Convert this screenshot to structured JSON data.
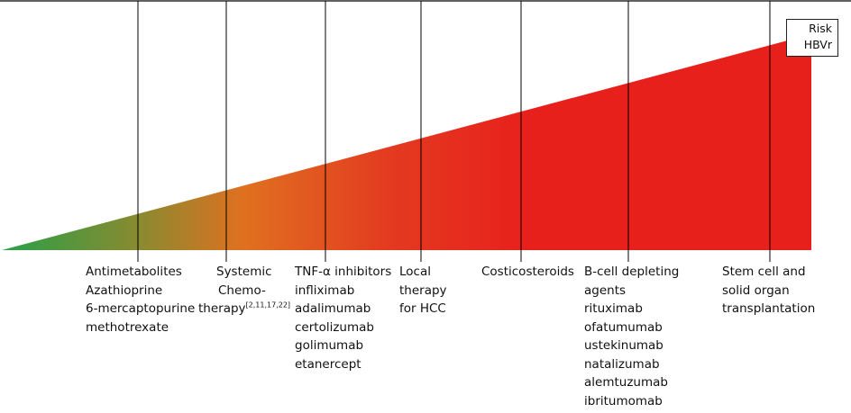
{
  "risk_label": {
    "line1": "Risk",
    "line2": "HBVr"
  },
  "colors": {
    "gradient_start": "#28a048",
    "gradient_mid1": "#8a8a30",
    "gradient_mid2": "#e07020",
    "gradient_mid3": "#e33a20",
    "gradient_end": "#e8201c",
    "line": "#000000"
  },
  "categories": [
    {
      "id": "antimetabolites",
      "lines": [
        "Antimetabolites",
        "Azathioprine",
        "6-mercaptopurine",
        "methotrexate"
      ]
    },
    {
      "id": "systemic-chemotherapy",
      "lines": [
        "Systemic",
        "Chemo-",
        "therapy"
      ],
      "ref": "[2,11,17,22]"
    },
    {
      "id": "tnf-inhibitors",
      "lines": [
        "TNF-α inhibitors",
        "infliximab",
        "adalimumab",
        "certolizumab",
        "golimumab",
        "etanercept"
      ]
    },
    {
      "id": "local-therapy-hcc",
      "lines": [
        "Local",
        "therapy",
        "for HCC"
      ]
    },
    {
      "id": "corticosteroids",
      "lines": [
        "Costicosteroids"
      ]
    },
    {
      "id": "b-cell-depleting",
      "lines": [
        "B-cell depleting",
        "agents",
        "rituximab",
        "ofatumumab",
        "ustekinumab",
        "natalizumab",
        "alemtuzumab",
        "ibritumomab"
      ]
    },
    {
      "id": "transplantation",
      "lines": [
        "Stem cell and",
        "solid organ",
        "transplantation"
      ]
    }
  ]
}
